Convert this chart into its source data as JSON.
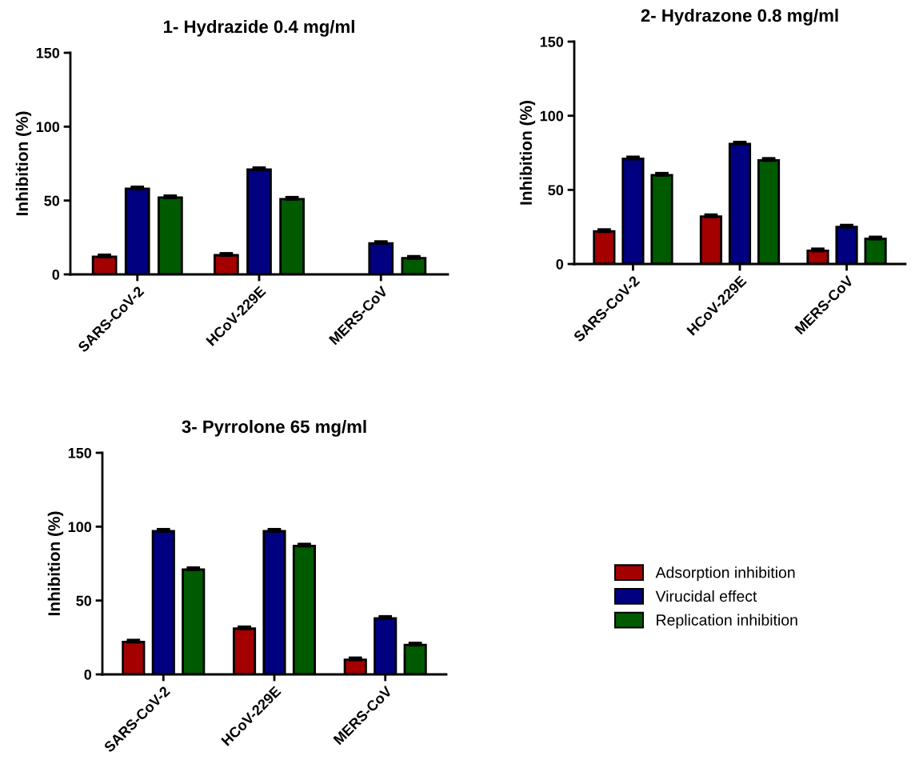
{
  "chart_data": [
    {
      "type": "bar",
      "title": "1- Hydrazide 0.4 mg/ml",
      "ylabel": "Inhibition (%)",
      "categories": [
        "SARS-CoV-2",
        "HCoV-229E",
        "MERS-CoV"
      ],
      "ylim": [
        0,
        150
      ],
      "yticks": [
        0,
        50,
        100,
        150
      ],
      "grid": false,
      "legend": false,
      "series": [
        {
          "color": "#a50000",
          "values": [
            12,
            13,
            null
          ],
          "errors": [
            1,
            1,
            null
          ]
        },
        {
          "color": "#000080",
          "values": [
            58,
            71,
            21
          ],
          "errors": [
            1,
            1,
            1
          ]
        },
        {
          "color": "#005a00",
          "values": [
            52,
            51,
            11
          ],
          "errors": [
            1,
            1,
            1
          ]
        }
      ]
    },
    {
      "type": "bar",
      "title": "2- Hydrazone 0.8 mg/ml",
      "ylabel": "Inhibition (%)",
      "categories": [
        "SARS-CoV-2",
        "HCoV-229E",
        "MERS-CoV"
      ],
      "ylim": [
        0,
        150
      ],
      "yticks": [
        0,
        50,
        100,
        150
      ],
      "grid": false,
      "legend": false,
      "series": [
        {
          "color": "#a50000",
          "values": [
            22,
            32,
            9
          ],
          "errors": [
            1,
            1,
            1
          ]
        },
        {
          "color": "#000080",
          "values": [
            71,
            81,
            25
          ],
          "errors": [
            1,
            1,
            1
          ]
        },
        {
          "color": "#005a00",
          "values": [
            60,
            70,
            17
          ],
          "errors": [
            1,
            1,
            1
          ]
        }
      ]
    },
    {
      "type": "bar",
      "title": "3- Pyrrolone 65 mg/ml",
      "ylabel": "Inhibition (%)",
      "categories": [
        "SARS-CoV-2",
        "HCoV-229E",
        "MERS-CoV"
      ],
      "ylim": [
        0,
        150
      ],
      "yticks": [
        0,
        50,
        100,
        150
      ],
      "grid": false,
      "legend": "right",
      "series": [
        {
          "name": "Adsorption inhibition",
          "color": "#a50000",
          "values": [
            22,
            31,
            10
          ],
          "errors": [
            1,
            1,
            1
          ]
        },
        {
          "name": "Virucidal effect",
          "color": "#000080",
          "values": [
            97,
            97,
            38
          ],
          "errors": [
            1,
            1,
            1
          ]
        },
        {
          "name": "Replication inhibition",
          "color": "#005a00",
          "values": [
            71,
            87,
            20
          ],
          "errors": [
            1,
            1,
            1
          ]
        }
      ]
    }
  ]
}
